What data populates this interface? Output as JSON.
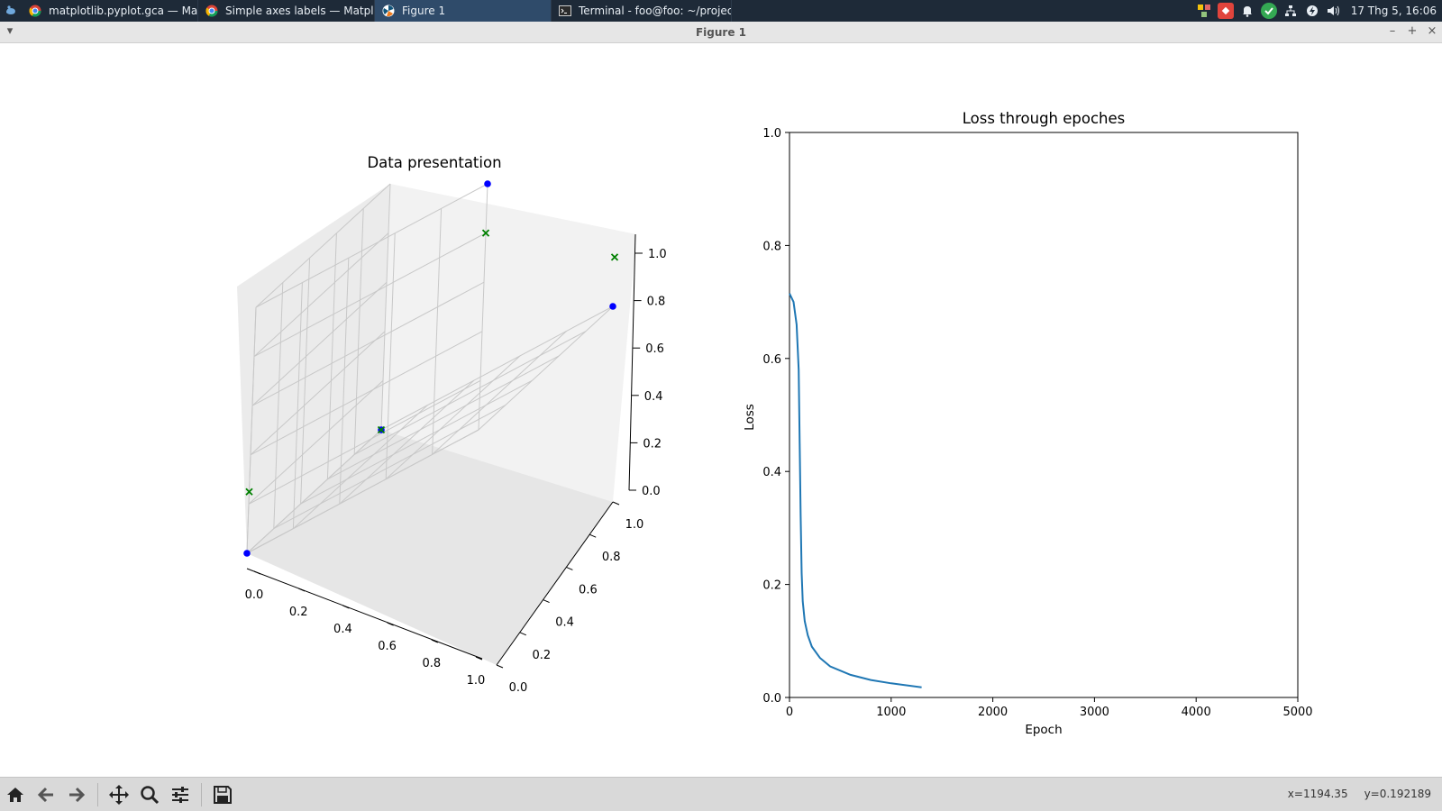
{
  "taskbar": {
    "tasks": [
      {
        "label": "matplotlib.pyplot.gca — Mat...",
        "icon": "chrome-icon"
      },
      {
        "label": "Simple axes labels — Matpl...",
        "icon": "chrome-icon"
      },
      {
        "label": "Figure 1",
        "icon": "matplotlib-icon"
      },
      {
        "label": "Terminal - foo@foo: ~/projec...",
        "icon": "terminal-icon"
      }
    ],
    "clock": "17 Thg 5, 16:06"
  },
  "window": {
    "title": "Figure 1"
  },
  "figure": {
    "plot3d": {
      "title": "Data presentation",
      "x_ticks": [
        "0.0",
        "0.2",
        "0.4",
        "0.6",
        "0.8",
        "1.0"
      ],
      "y_ticks": [
        "0.0",
        "0.2",
        "0.4",
        "0.6",
        "0.8",
        "1.0"
      ],
      "z_ticks": [
        "0.0",
        "0.2",
        "0.4",
        "0.6",
        "0.8",
        "1.0"
      ]
    },
    "loss": {
      "title": "Loss through epoches",
      "xlabel": "Epoch",
      "ylabel": "Loss",
      "x_ticks": [
        "0",
        "1000",
        "2000",
        "3000",
        "4000",
        "5000"
      ],
      "y_ticks": [
        "0.0",
        "0.2",
        "0.4",
        "0.6",
        "0.8",
        "1.0"
      ]
    }
  },
  "chart_data": [
    {
      "type": "scatter",
      "title": "Data presentation",
      "projection": "3d",
      "xlim": [
        0,
        1
      ],
      "ylim": [
        0,
        1
      ],
      "zlim": [
        0,
        1
      ],
      "series": [
        {
          "marker": "o",
          "color": "#0000ff",
          "points": [
            [
              0,
              0,
              0
            ],
            [
              1,
              0,
              0
            ],
            [
              0,
              1,
              0
            ],
            [
              1,
              1,
              1
            ]
          ]
        },
        {
          "marker": "x",
          "color": "#008000",
          "points": [
            [
              0,
              0,
              0
            ],
            [
              1,
              0,
              0.2
            ],
            [
              0,
              1,
              0.25
            ],
            [
              1,
              1,
              0.8
            ]
          ]
        }
      ]
    },
    {
      "type": "line",
      "title": "Loss through epoches",
      "xlabel": "Epoch",
      "ylabel": "Loss",
      "xlim": [
        0,
        5000
      ],
      "ylim": [
        0,
        1
      ],
      "color": "#1f77b4",
      "x": [
        0,
        40,
        70,
        90,
        100,
        110,
        120,
        130,
        150,
        180,
        220,
        300,
        400,
        600,
        800,
        1000,
        1300
      ],
      "y": [
        0.715,
        0.7,
        0.66,
        0.58,
        0.45,
        0.32,
        0.22,
        0.17,
        0.135,
        0.11,
        0.09,
        0.07,
        0.055,
        0.04,
        0.031,
        0.025,
        0.018
      ]
    }
  ],
  "toolbar": {
    "buttons": [
      "home-icon",
      "back-icon",
      "forward-icon",
      "pan-icon",
      "zoom-icon",
      "configure-icon",
      "save-icon"
    ],
    "x_readout": "x=1194.35",
    "y_readout": "y=0.192189"
  }
}
